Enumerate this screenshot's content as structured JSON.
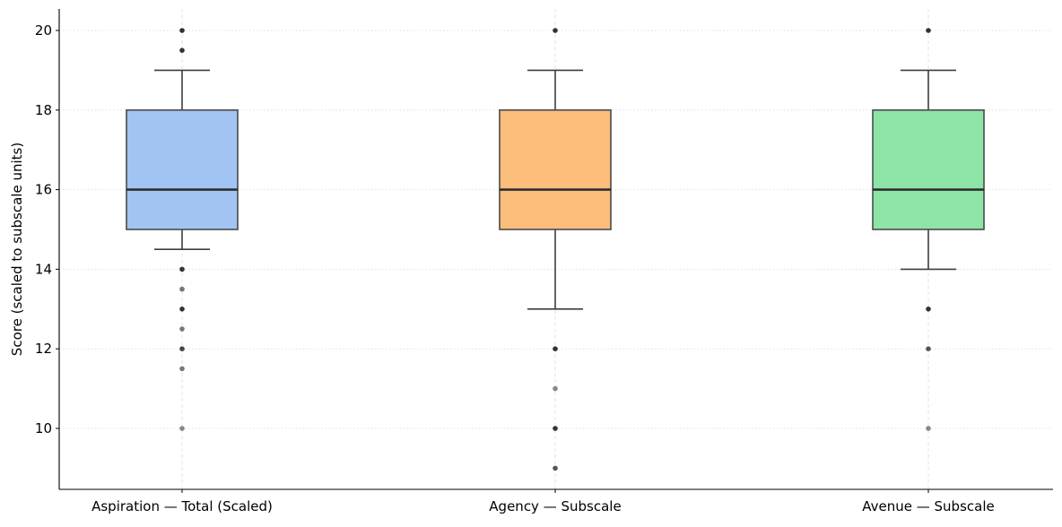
{
  "chart_data": {
    "type": "box",
    "title": "",
    "xlabel": "",
    "ylabel": "Score (scaled to subscale units)",
    "ylim": [
      8.5,
      20.5
    ],
    "yticks": [
      10,
      12,
      14,
      16,
      18,
      20
    ],
    "grid": true,
    "legend": null,
    "categories": [
      "Aspiration — Total (Scaled)",
      "Agency — Subscale",
      "Avenue — Subscale"
    ],
    "series": [
      {
        "name": "Aspiration — Total (Scaled)",
        "color": "#a1c4f3",
        "whisker_low": 14.5,
        "q1": 15,
        "median": 16,
        "q3": 18,
        "whisker_high": 19,
        "outliers": [
          {
            "v": 20,
            "shade": "#333333"
          },
          {
            "v": 19.5,
            "shade": "#333333"
          },
          {
            "v": 14,
            "shade": "#333333"
          },
          {
            "v": 13.5,
            "shade": "#777777"
          },
          {
            "v": 13,
            "shade": "#333333"
          },
          {
            "v": 12.5,
            "shade": "#777777"
          },
          {
            "v": 12,
            "shade": "#444444"
          },
          {
            "v": 11.5,
            "shade": "#777777"
          },
          {
            "v": 10,
            "shade": "#888888"
          }
        ]
      },
      {
        "name": "Agency — Subscale",
        "color": "#fdbd7b",
        "whisker_low": 13,
        "q1": 15,
        "median": 16,
        "q3": 18,
        "whisker_high": 19,
        "outliers": [
          {
            "v": 20,
            "shade": "#333333"
          },
          {
            "v": 12,
            "shade": "#333333"
          },
          {
            "v": 11,
            "shade": "#888888"
          },
          {
            "v": 10,
            "shade": "#333333"
          },
          {
            "v": 9,
            "shade": "#555555"
          }
        ]
      },
      {
        "name": "Avenue — Subscale",
        "color": "#8ce5a6",
        "whisker_low": 14,
        "q1": 15,
        "median": 16,
        "q3": 18,
        "whisker_high": 19,
        "outliers": [
          {
            "v": 20,
            "shade": "#333333"
          },
          {
            "v": 13,
            "shade": "#333333"
          },
          {
            "v": 12,
            "shade": "#555555"
          },
          {
            "v": 10,
            "shade": "#888888"
          }
        ]
      }
    ]
  }
}
